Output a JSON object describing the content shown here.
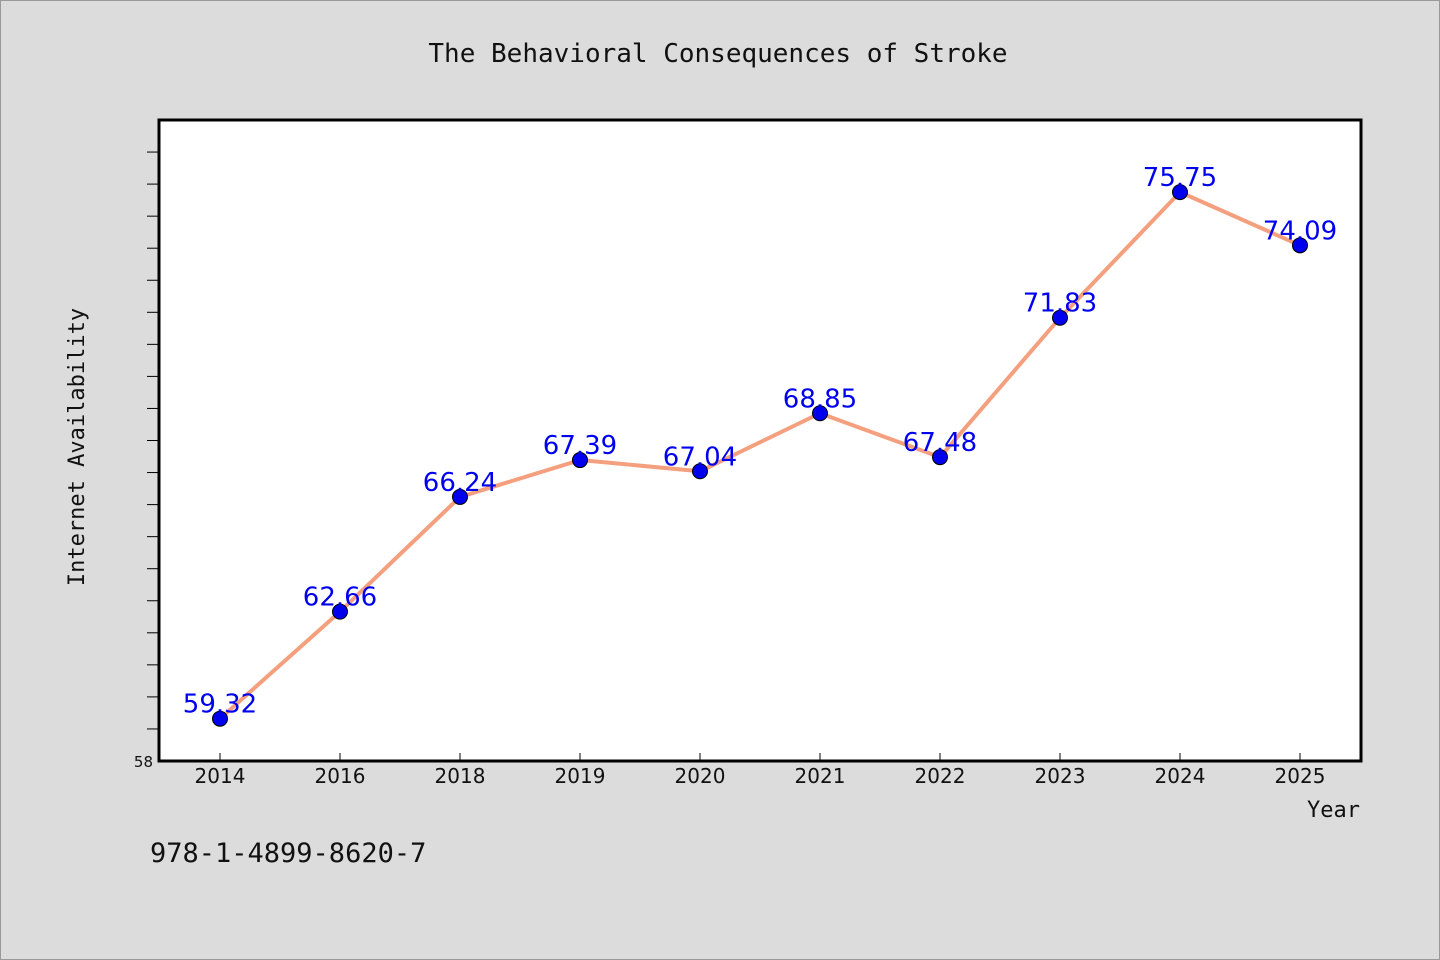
{
  "chart_data": {
    "type": "line",
    "title": "The Behavioral Consequences of Stroke",
    "xlabel": "Year",
    "ylabel": "Internet Availability",
    "categories": [
      "2014",
      "2016",
      "2018",
      "2019",
      "2020",
      "2021",
      "2022",
      "2023",
      "2024",
      "2025"
    ],
    "series": [
      {
        "values": [
          59.32,
          62.66,
          66.24,
          67.39,
          67.04,
          68.85,
          67.48,
          71.83,
          75.75,
          74.09
        ],
        "labels": [
          "59.32",
          "62.66",
          "66.24",
          "67.39",
          "67.04",
          "68.85",
          "67.48",
          "71.83",
          "75.75",
          "74.09"
        ],
        "line_color": "#f4a07f",
        "marker_color": "#0000ee"
      }
    ],
    "ylim": [
      58,
      78
    ],
    "ytick_labels": [
      "58"
    ],
    "grid": false,
    "background": "#dcdcdc",
    "plot_background": "#ffffff"
  },
  "footer": {
    "isbn": "978-1-4899-8620-7"
  }
}
